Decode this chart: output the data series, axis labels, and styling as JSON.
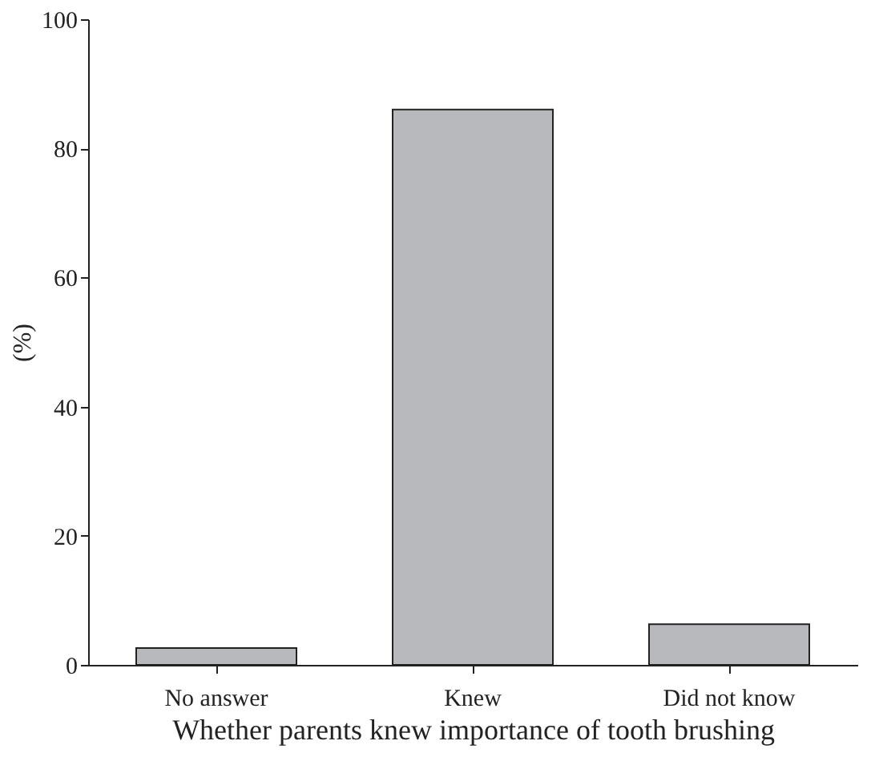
{
  "chart_data": {
    "type": "bar",
    "categories": [
      "No answer",
      "Knew",
      "Did not know"
    ],
    "values": [
      2.6,
      86.0,
      6.3
    ],
    "color": "#b8b9bd",
    "xlabel": "Whether parents knew importance of tooth brushing",
    "ylabel": "(%)",
    "ylim": [
      0,
      100
    ],
    "yticks": [
      0,
      20,
      40,
      60,
      80,
      100
    ],
    "grid": false
  }
}
